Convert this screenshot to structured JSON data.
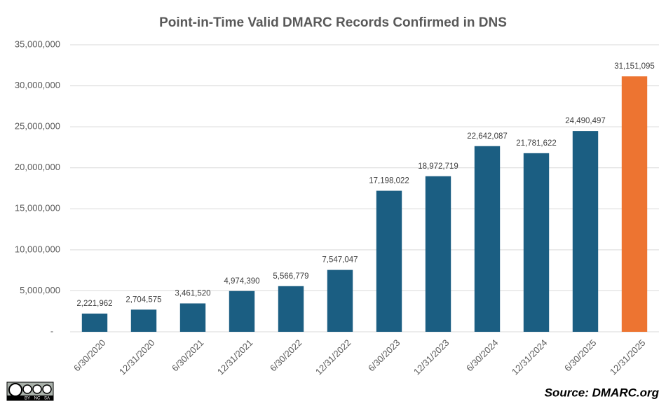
{
  "chart_data": {
    "type": "bar",
    "title": "Point-in-Time Valid DMARC Records Confirmed in DNS",
    "categories": [
      "6/30/2020",
      "12/31/2020",
      "6/30/2021",
      "12/31/2021",
      "6/30/2022",
      "12/31/2022",
      "6/30/2023",
      "12/31/2023",
      "6/30/2024",
      "12/31/2024",
      "6/30/2025",
      "12/31/2025"
    ],
    "values": [
      2221962,
      2704575,
      3461520,
      4974390,
      5566779,
      7547047,
      17198022,
      18972719,
      22642087,
      21781622,
      24490497,
      31151095
    ],
    "value_labels": [
      "2,221,962",
      "2,704,575",
      "3,461,520",
      "4,974,390",
      "5,566,779",
      "7,547,047",
      "17,198,022",
      "18,972,719",
      "22,642,087",
      "21,781,622",
      "24,490,497",
      "31,151,095"
    ],
    "colors": [
      "#1b5e82",
      "#1b5e82",
      "#1b5e82",
      "#1b5e82",
      "#1b5e82",
      "#1b5e82",
      "#1b5e82",
      "#1b5e82",
      "#1b5e82",
      "#1b5e82",
      "#1b5e82",
      "#ed7431"
    ],
    "ylim": [
      0,
      35000000
    ],
    "yticks": [
      {
        "value": 0,
        "label": "-"
      },
      {
        "value": 5000000,
        "label": "5,000,000"
      },
      {
        "value": 10000000,
        "label": "10,000,000"
      },
      {
        "value": 15000000,
        "label": "15,000,000"
      },
      {
        "value": 20000000,
        "label": "20,000,000"
      },
      {
        "value": 25000000,
        "label": "25,000,000"
      },
      {
        "value": 30000000,
        "label": "30,000,000"
      },
      {
        "value": 35000000,
        "label": "35,000,000"
      }
    ],
    "grid": true,
    "source": "Source: DMARC.org",
    "license": [
      "BY",
      "NC",
      "SA"
    ]
  }
}
